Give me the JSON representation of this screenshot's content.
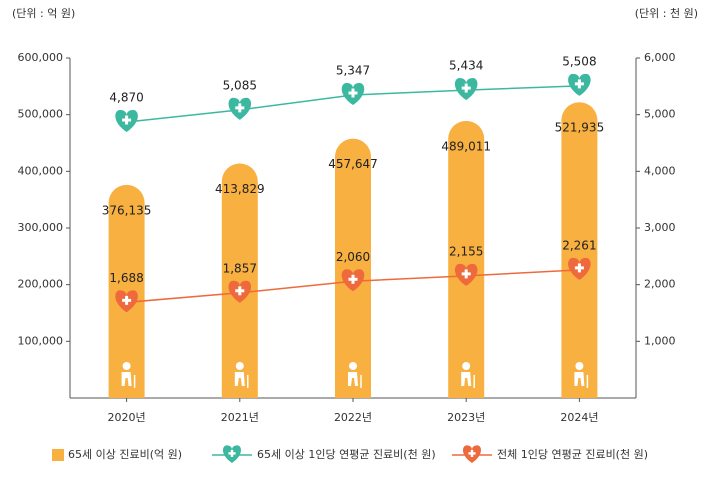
{
  "chart_data": {
    "type": "bar_line",
    "unit_left": "(단위 : 억 원)",
    "unit_right": "(단위 : 천 원)",
    "categories": [
      "2020년",
      "2021년",
      "2022년",
      "2023년",
      "2024년"
    ],
    "series": [
      {
        "name": "65세 이상 진료비(억 원)",
        "type": "bar",
        "color": "#f8b040",
        "values": [
          376135,
          413829,
          457647,
          489011,
          521935
        ],
        "value_labels": [
          "376,135",
          "413,829",
          "457,647",
          "489,011",
          "521,935"
        ]
      },
      {
        "name": "65세 이상 1인당 연평균 진료비(천 원)",
        "type": "line",
        "axis": "y2",
        "color": "#3cb8a0",
        "values": [
          4870,
          5085,
          5347,
          5434,
          5508
        ],
        "value_labels": [
          "4,870",
          "5,085",
          "5,347",
          "5,434",
          "5,508"
        ]
      },
      {
        "name": "전체 1인당 연평균 진료비(천 원)",
        "type": "line",
        "axis": "y2",
        "color": "#ee6a3c",
        "values": [
          1688,
          1857,
          2060,
          2155,
          2261
        ],
        "value_labels": [
          "1,688",
          "1,857",
          "2,060",
          "2,155",
          "2,261"
        ]
      }
    ],
    "ylim": [
      0,
      600000
    ],
    "yticks": [
      {
        "value": 100000,
        "label": "100,000"
      },
      {
        "value": 200000,
        "label": "200,000"
      },
      {
        "value": 300000,
        "label": "300,000"
      },
      {
        "value": 400000,
        "label": "400,000"
      },
      {
        "value": 500000,
        "label": "500,000"
      },
      {
        "value": 600000,
        "label": "600,000"
      }
    ],
    "y2lim": [
      0,
      6000
    ],
    "y2ticks": [
      {
        "value": 1000,
        "label": "1,000"
      },
      {
        "value": 2000,
        "label": "2,000"
      },
      {
        "value": 3000,
        "label": "3,000"
      },
      {
        "value": 4000,
        "label": "4,000"
      },
      {
        "value": 5000,
        "label": "5,000"
      },
      {
        "value": 6000,
        "label": "6,000"
      }
    ]
  }
}
